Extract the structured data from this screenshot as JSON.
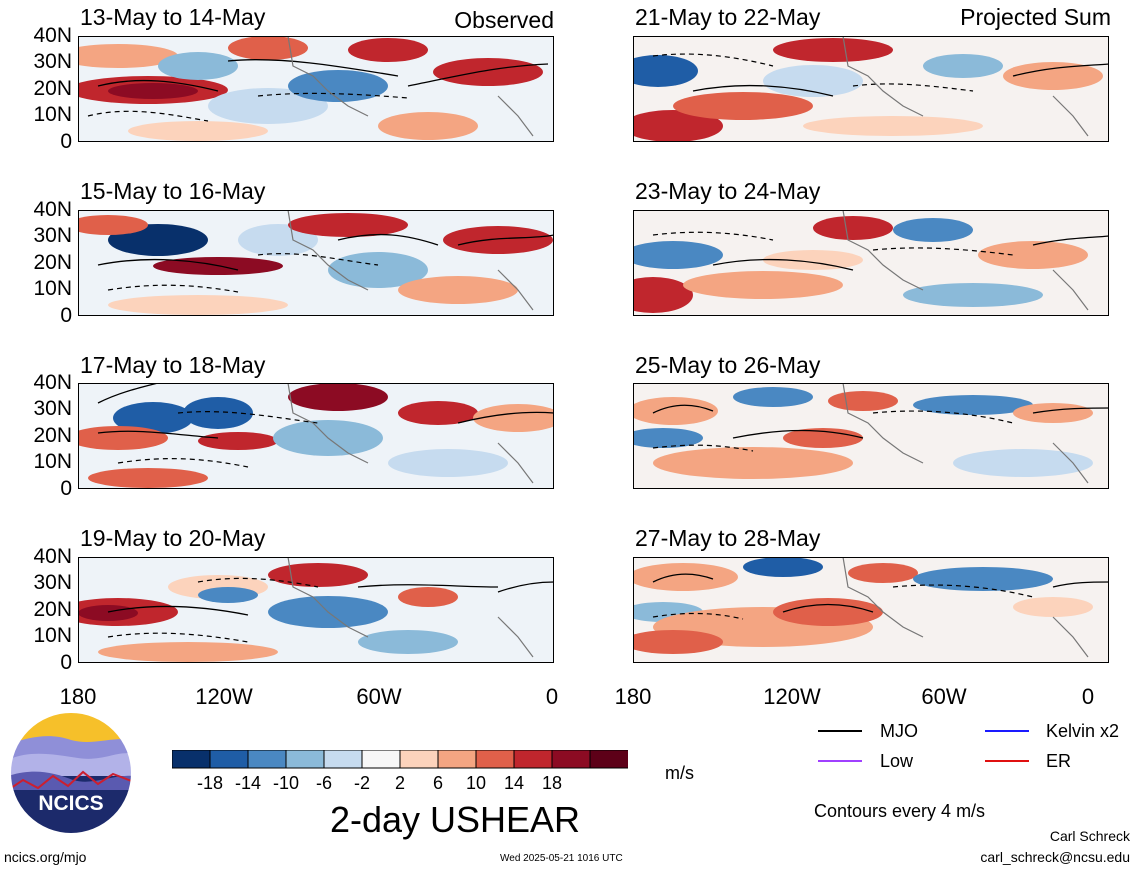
{
  "panels": [
    {
      "title": "13-May to 14-May",
      "tag": "Observed"
    },
    {
      "title": "21-May to 22-May",
      "tag": "Projected Sum"
    },
    {
      "title": "15-May to 16-May",
      "tag": ""
    },
    {
      "title": "23-May to 24-May",
      "tag": ""
    },
    {
      "title": "17-May to 18-May",
      "tag": ""
    },
    {
      "title": "25-May to 26-May",
      "tag": ""
    },
    {
      "title": "19-May to 20-May",
      "tag": ""
    },
    {
      "title": "27-May to 28-May",
      "tag": ""
    }
  ],
  "lat_labels": [
    "40N",
    "30N",
    "20N",
    "10N",
    "0"
  ],
  "lon_labels": [
    "180",
    "120W",
    "60W",
    "0"
  ],
  "colorbar": {
    "ticks": [
      "-18",
      "-14",
      "-10",
      "-6",
      "-2",
      "2",
      "6",
      "10",
      "14",
      "18"
    ],
    "units": "m/s",
    "colors": [
      "#08306b",
      "#1f5da6",
      "#4a88c2",
      "#8bbad9",
      "#c6dbef",
      "#f7f7f7",
      "#fcd3bc",
      "#f4a582",
      "#e0604a",
      "#c0262d",
      "#8c0b23",
      "#5d0018"
    ]
  },
  "main_title": "2-day USHEAR",
  "legend": {
    "items": [
      {
        "label": "MJO",
        "color": "#000000"
      },
      {
        "label": "Kelvin x2",
        "color": "#1a1aff"
      },
      {
        "label": "Low",
        "color": "#a040ff"
      },
      {
        "label": "ER",
        "color": "#e01010"
      }
    ],
    "contours_note": "Contours every 4 m/s"
  },
  "logo_text": "NCICS",
  "footer": {
    "url": "ncics.org/mjo",
    "timestamp": "Wed 2025-05-21 1016 UTC",
    "author": "Carl Schreck",
    "email": "carl_schreck@ncsu.edu"
  }
}
